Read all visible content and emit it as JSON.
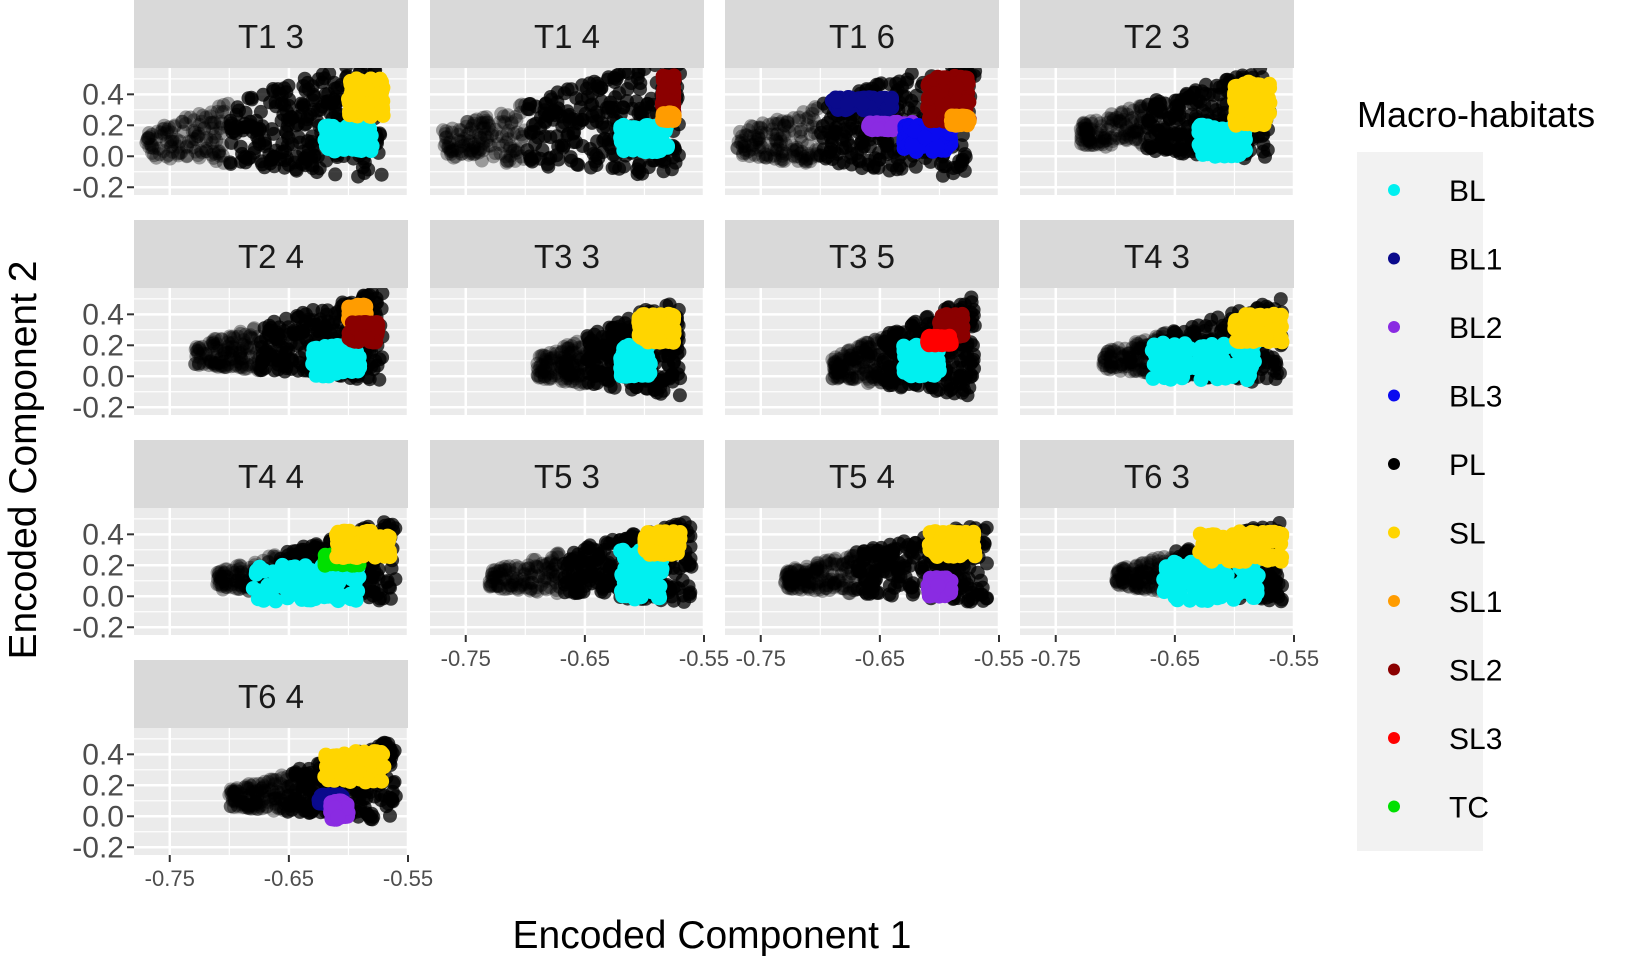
{
  "chart_data": {
    "type": "scatter",
    "xlabel": "Encoded Component 1",
    "ylabel": "Encoded Component 2",
    "xlim": [
      -0.78,
      -0.55
    ],
    "ylim": [
      -0.25,
      0.57
    ],
    "x_ticks": [
      -0.75,
      -0.65,
      -0.55
    ],
    "x_tick_labels": [
      "-0.75",
      "-0.65",
      "-0.55"
    ],
    "y_ticks": [
      -0.2,
      0.0,
      0.2,
      0.4
    ],
    "y_tick_labels": [
      "-0.2",
      "0.0",
      "0.2",
      "0.4"
    ],
    "grid": true,
    "facets": [
      "T1 3",
      "T1 4",
      "T1 6",
      "T2 3",
      "T2 4",
      "T3 3",
      "T3 5",
      "T4 3",
      "T4 4",
      "T5 3",
      "T5 4",
      "T6 3",
      "T6 4"
    ],
    "legend": {
      "title": "Macro-habitats",
      "placement": "right",
      "items": [
        {
          "label": "BL",
          "color": "#00f0f0"
        },
        {
          "label": "BL1",
          "color": "#0a0a8c"
        },
        {
          "label": "BL2",
          "color": "#8a2be2"
        },
        {
          "label": "BL3",
          "color": "#0a0af0"
        },
        {
          "label": "PL",
          "color": "#000000"
        },
        {
          "label": "SL",
          "color": "#ffd500"
        },
        {
          "label": "SL1",
          "color": "#ff9c00"
        },
        {
          "label": "SL2",
          "color": "#8b0000"
        },
        {
          "label": "SL3",
          "color": "#ff0000"
        },
        {
          "label": "TC",
          "color": "#00e000"
        }
      ]
    },
    "approx_clusters": [
      {
        "facet": "T1 3",
        "PL": {
          "x": [
            -0.77,
            -0.57
          ],
          "y": [
            -0.17,
            0.55
          ]
        },
        "BL": {
          "x": [
            -0.62,
            -0.58
          ],
          "y": [
            0.03,
            0.2
          ]
        },
        "SL": {
          "x": [
            -0.6,
            -0.57
          ],
          "y": [
            0.25,
            0.5
          ]
        }
      },
      {
        "facet": "T1 4",
        "PL": {
          "x": [
            -0.77,
            -0.57
          ],
          "y": [
            -0.17,
            0.55
          ]
        },
        "BL": {
          "x": [
            -0.62,
            -0.58
          ],
          "y": [
            0.03,
            0.2
          ]
        },
        "SL2": {
          "x": [
            -0.585,
            -0.575
          ],
          "y": [
            0.28,
            0.52
          ]
        },
        "SL1": {
          "x": [
            -0.585,
            -0.575
          ],
          "y": [
            0.23,
            0.28
          ]
        }
      },
      {
        "facet": "T1 6",
        "PL": {
          "x": [
            -0.77,
            -0.57
          ],
          "y": [
            -0.17,
            0.55
          ]
        },
        "BL1": {
          "x": [
            -0.69,
            -0.64
          ],
          "y": [
            0.3,
            0.38
          ]
        },
        "BL2": {
          "x": [
            -0.66,
            -0.62
          ],
          "y": [
            0.17,
            0.22
          ]
        },
        "BL3": {
          "x": [
            -0.63,
            -0.59
          ],
          "y": [
            0.03,
            0.2
          ]
        },
        "SL2": {
          "x": [
            -0.61,
            -0.575
          ],
          "y": [
            0.22,
            0.52
          ]
        },
        "SL1": {
          "x": [
            -0.59,
            -0.575
          ],
          "y": [
            0.2,
            0.26
          ]
        }
      },
      {
        "facet": "T2 3",
        "PL": {
          "x": [
            -0.73,
            -0.57
          ],
          "y": [
            -0.05,
            0.5
          ]
        },
        "BL": {
          "x": [
            -0.63,
            -0.59
          ],
          "y": [
            0.0,
            0.2
          ]
        },
        "SL": {
          "x": [
            -0.6,
            -0.57
          ],
          "y": [
            0.2,
            0.48
          ]
        }
      },
      {
        "facet": "T2 4",
        "PL": {
          "x": [
            -0.73,
            -0.57
          ],
          "y": [
            -0.05,
            0.48
          ]
        },
        "BL": {
          "x": [
            -0.63,
            -0.59
          ],
          "y": [
            0.0,
            0.2
          ]
        },
        "SL1": {
          "x": [
            -0.6,
            -0.585
          ],
          "y": [
            0.35,
            0.46
          ]
        },
        "SL2": {
          "x": [
            -0.6,
            -0.575
          ],
          "y": [
            0.22,
            0.35
          ]
        }
      },
      {
        "facet": "T3 3",
        "PL": {
          "x": [
            -0.69,
            -0.57
          ],
          "y": [
            -0.15,
            0.43
          ]
        },
        "BL": {
          "x": [
            -0.62,
            -0.595
          ],
          "y": [
            0.0,
            0.2
          ]
        },
        "SL": {
          "x": [
            -0.605,
            -0.575
          ],
          "y": [
            0.22,
            0.4
          ]
        }
      },
      {
        "facet": "T3 5",
        "PL": {
          "x": [
            -0.69,
            -0.57
          ],
          "y": [
            -0.15,
            0.43
          ]
        },
        "BL": {
          "x": [
            -0.63,
            -0.6
          ],
          "y": [
            0.0,
            0.2
          ]
        },
        "SL2": {
          "x": [
            -0.6,
            -0.58
          ],
          "y": [
            0.25,
            0.4
          ]
        },
        "SL3": {
          "x": [
            -0.61,
            -0.59
          ],
          "y": [
            0.2,
            0.26
          ]
        }
      },
      {
        "facet": "T4 3",
        "PL": {
          "x": [
            -0.71,
            -0.56
          ],
          "y": [
            -0.07,
            0.42
          ]
        },
        "BL": {
          "x": [
            -0.67,
            -0.58
          ],
          "y": [
            -0.03,
            0.22
          ]
        },
        "SL": {
          "x": [
            -0.6,
            -0.56
          ],
          "y": [
            0.22,
            0.4
          ]
        }
      },
      {
        "facet": "T4 4",
        "PL": {
          "x": [
            -0.71,
            -0.56
          ],
          "y": [
            -0.07,
            0.42
          ]
        },
        "BL": {
          "x": [
            -0.68,
            -0.59
          ],
          "y": [
            -0.03,
            0.2
          ]
        },
        "TC": {
          "x": [
            -0.62,
            -0.59
          ],
          "y": [
            0.2,
            0.27
          ]
        },
        "SL": {
          "x": [
            -0.61,
            -0.565
          ],
          "y": [
            0.25,
            0.42
          ]
        }
      },
      {
        "facet": "T5 3",
        "PL": {
          "x": [
            -0.73,
            -0.56
          ],
          "y": [
            -0.06,
            0.42
          ]
        },
        "BL": {
          "x": [
            -0.62,
            -0.585
          ],
          "y": [
            -0.02,
            0.3
          ]
        },
        "SL": {
          "x": [
            -0.6,
            -0.57
          ],
          "y": [
            0.27,
            0.42
          ]
        }
      },
      {
        "facet": "T5 4",
        "PL": {
          "x": [
            -0.73,
            -0.56
          ],
          "y": [
            -0.06,
            0.42
          ]
        },
        "BL2": {
          "x": [
            -0.61,
            -0.59
          ],
          "y": [
            0.0,
            0.12
          ]
        },
        "SL": {
          "x": [
            -0.61,
            -0.57
          ],
          "y": [
            0.25,
            0.42
          ]
        }
      },
      {
        "facet": "T6 3",
        "PL": {
          "x": [
            -0.7,
            -0.56
          ],
          "y": [
            -0.05,
            0.42
          ]
        },
        "BL": {
          "x": [
            -0.66,
            -0.58
          ],
          "y": [
            -0.03,
            0.22
          ]
        },
        "SL": {
          "x": [
            -0.63,
            -0.56
          ],
          "y": [
            0.22,
            0.42
          ]
        }
      },
      {
        "facet": "T6 4",
        "PL": {
          "x": [
            -0.7,
            -0.56
          ],
          "y": [
            -0.05,
            0.42
          ]
        },
        "BL1": {
          "x": [
            -0.625,
            -0.605
          ],
          "y": [
            0.08,
            0.14
          ]
        },
        "BL2": {
          "x": [
            -0.615,
            -0.6
          ],
          "y": [
            -0.02,
            0.1
          ]
        },
        "SL": {
          "x": [
            -0.62,
            -0.57
          ],
          "y": [
            0.22,
            0.42
          ]
        }
      }
    ]
  }
}
